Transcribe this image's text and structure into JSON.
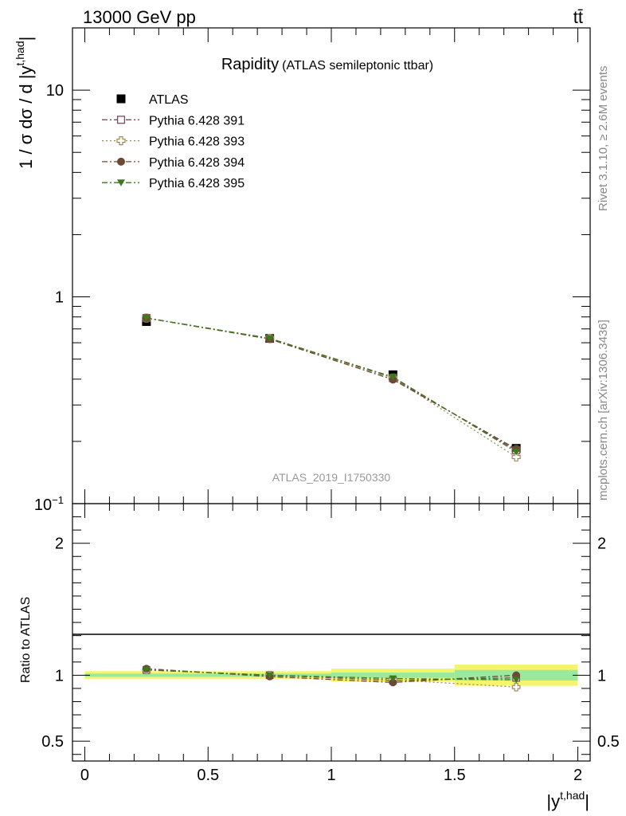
{
  "header": {
    "left": "13000 GeV pp",
    "right": "tt̄"
  },
  "side": {
    "rivet": "Rivet 3.1.10, ≥ 2.6M events",
    "mcplots": "mcplots.cern.ch [arXiv:1306.3436]"
  },
  "chart_data": [
    {
      "type": "line",
      "panel": "main",
      "title": "Rapidity",
      "subtitle": "(ATLAS semileptonic ttbar)",
      "watermark": "ATLAS_2019_I1750330",
      "ylabel_parts": {
        "main": "1 / σ dσ / d |y",
        "sup": "t,had",
        "close": "|"
      },
      "y_scale": "log",
      "ylim": [
        0.1,
        20
      ],
      "ytick_labels": [
        {
          "value": 0.1,
          "base": "10",
          "exp": "−1"
        },
        {
          "value": 1,
          "label": "1"
        },
        {
          "value": 10,
          "label": "10"
        }
      ],
      "xlim": [
        -0.05,
        2.05
      ],
      "x": [
        0.25,
        0.75,
        1.25,
        1.75
      ],
      "legend_position": "top-left",
      "series": [
        {
          "name": "ATLAS",
          "marker": "filled-square",
          "color": "#000000",
          "line": "none",
          "values": [
            0.76,
            0.63,
            0.42,
            0.185
          ],
          "errors": [
            0.01,
            0.008,
            0.01,
            0.008
          ]
        },
        {
          "name": "Pythia 6.428 391",
          "marker": "open-square",
          "color": "#7b4a63",
          "line": "dashdot",
          "values": [
            0.79,
            0.63,
            0.405,
            0.181
          ]
        },
        {
          "name": "Pythia 6.428 393",
          "marker": "open-cross",
          "color": "#9b8a5e",
          "line": "dotted",
          "values": [
            0.79,
            0.63,
            0.405,
            0.168
          ]
        },
        {
          "name": "Pythia 6.428 394",
          "marker": "filled-circle",
          "color": "#6b4a35",
          "line": "dashdot",
          "values": [
            0.79,
            0.625,
            0.398,
            0.184
          ]
        },
        {
          "name": "Pythia 6.428 395",
          "marker": "filled-triangle-down",
          "color": "#3d7a1a",
          "line": "dashdot",
          "values": [
            0.79,
            0.63,
            0.41,
            0.178
          ]
        }
      ]
    },
    {
      "type": "line",
      "panel": "ratio",
      "ylabel": "Ratio to ATLAS",
      "xlabel_parts": {
        "main": "|y",
        "sup": "t,had",
        "close": "|"
      },
      "y_scale": "linear",
      "ylim": [
        0.35,
        2.3
      ],
      "ytick_labels": [
        {
          "value": 0.5,
          "label": "0.5"
        },
        {
          "value": 1,
          "label": "1"
        },
        {
          "value": 2,
          "label": "2"
        }
      ],
      "xlim": [
        -0.05,
        2.05
      ],
      "xtick_labels": [
        {
          "value": 0,
          "label": "0"
        },
        {
          "value": 0.5,
          "label": "0.5"
        },
        {
          "value": 1,
          "label": "1"
        },
        {
          "value": 1.5,
          "label": "1.5"
        },
        {
          "value": 2,
          "label": "2"
        }
      ],
      "x": [
        0.25,
        0.75,
        1.25,
        1.75
      ],
      "bands": [
        {
          "x0": 0.0,
          "x1": 0.5,
          "stat": 0.012,
          "total": 0.03
        },
        {
          "x0": 0.5,
          "x1": 1.0,
          "stat": 0.012,
          "total": 0.03
        },
        {
          "x0": 1.0,
          "x1": 1.5,
          "stat": 0.02,
          "total": 0.05
        },
        {
          "x0": 1.5,
          "x1": 2.0,
          "stat": 0.04,
          "total": 0.08
        }
      ],
      "series": [
        {
          "name": "Pythia 6.428 391",
          "values": [
            1.04,
            1.0,
            0.96,
            0.98
          ]
        },
        {
          "name": "Pythia 6.428 393",
          "values": [
            1.04,
            1.0,
            0.965,
            0.91
          ]
        },
        {
          "name": "Pythia 6.428 394",
          "values": [
            1.05,
            0.99,
            0.945,
            1.0
          ]
        },
        {
          "name": "Pythia 6.428 395",
          "values": [
            1.04,
            1.0,
            0.975,
            0.965
          ]
        }
      ]
    }
  ]
}
